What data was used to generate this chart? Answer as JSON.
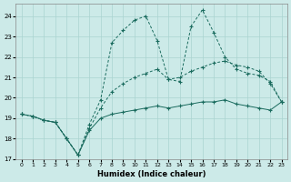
{
  "xlabel": "Humidex (Indice chaleur)",
  "xlim": [
    -0.5,
    23.5
  ],
  "ylim": [
    17,
    24.6
  ],
  "yticks": [
    17,
    18,
    19,
    20,
    21,
    22,
    23,
    24
  ],
  "xticks": [
    0,
    1,
    2,
    3,
    4,
    5,
    6,
    7,
    8,
    9,
    10,
    11,
    12,
    13,
    14,
    15,
    16,
    17,
    18,
    19,
    20,
    21,
    22,
    23
  ],
  "bg_color": "#cceae8",
  "grid_color": "#aad4d0",
  "line_color": "#1a6b5e",
  "series": {
    "spiky_x": [
      0,
      1,
      2,
      3,
      4,
      5,
      6,
      7,
      8,
      9,
      10,
      11,
      12,
      13,
      14,
      15,
      16,
      17,
      18,
      19,
      20,
      21,
      22,
      23
    ],
    "spiky_y": [
      19.2,
      19.1,
      18.9,
      18.8,
      18.0,
      17.2,
      18.7,
      19.9,
      22.7,
      23.3,
      23.8,
      24.0,
      22.8,
      20.9,
      20.8,
      23.5,
      24.3,
      23.2,
      22.0,
      21.4,
      21.2,
      21.1,
      20.8,
      19.8
    ],
    "medium_x": [
      0,
      1,
      2,
      3,
      4,
      5,
      6,
      7,
      8,
      9,
      10,
      11,
      12,
      13,
      14,
      15,
      16,
      17,
      18,
      19,
      20,
      21,
      22,
      23
    ],
    "medium_y": [
      19.2,
      19.1,
      18.9,
      18.8,
      18.0,
      17.2,
      18.5,
      19.5,
      20.3,
      20.7,
      21.0,
      21.2,
      21.4,
      20.9,
      21.0,
      21.3,
      21.5,
      21.7,
      21.8,
      21.6,
      21.5,
      21.3,
      20.7,
      19.8
    ],
    "flat_x": [
      0,
      1,
      2,
      3,
      4,
      5,
      6,
      7,
      8,
      9,
      10,
      11,
      12,
      13,
      14,
      15,
      16,
      17,
      18,
      19,
      20,
      21,
      22,
      23
    ],
    "flat_y": [
      19.2,
      19.1,
      18.9,
      18.8,
      18.0,
      17.2,
      18.4,
      19.0,
      19.2,
      19.3,
      19.4,
      19.5,
      19.6,
      19.5,
      19.6,
      19.7,
      19.8,
      19.8,
      19.9,
      19.7,
      19.6,
      19.5,
      19.4,
      19.8
    ]
  }
}
